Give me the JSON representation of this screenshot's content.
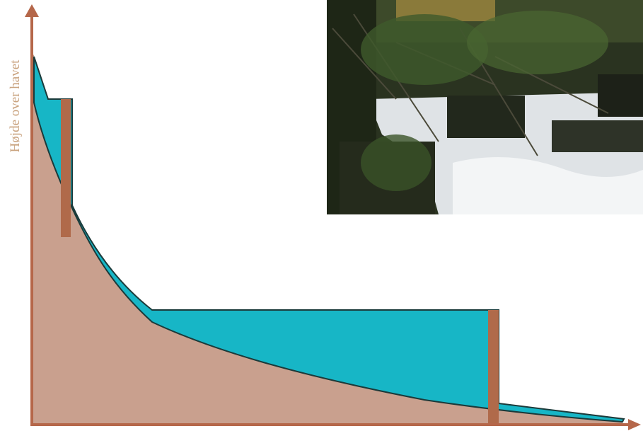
{
  "axis_label": "Højde over havet"
}
